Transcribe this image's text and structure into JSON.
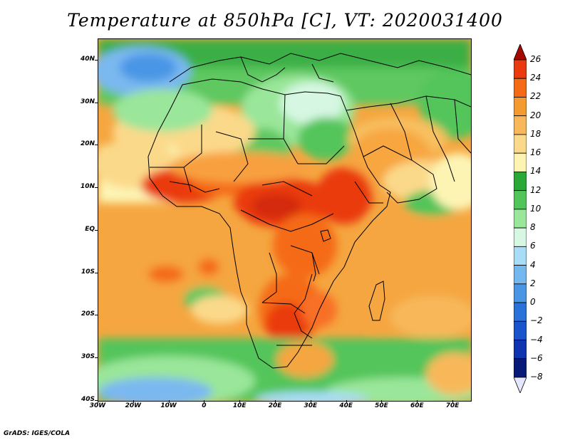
{
  "title": "Temperature at 850hPa [C], VT: 2020031400",
  "footer": "GrADS: IGES/COLA",
  "map": {
    "region": "Africa",
    "lon_range": [
      -30,
      75
    ],
    "lat_range": [
      -40,
      45
    ],
    "y_ticks": [
      {
        "label": "40N",
        "lat": 40
      },
      {
        "label": "30N",
        "lat": 30
      },
      {
        "label": "20N",
        "lat": 20
      },
      {
        "label": "10N",
        "lat": 10
      },
      {
        "label": "EQ",
        "lat": 0
      },
      {
        "label": "10S",
        "lat": -10
      },
      {
        "label": "20S",
        "lat": -20
      },
      {
        "label": "30S",
        "lat": -30
      },
      {
        "label": "40S",
        "lat": -40
      }
    ],
    "x_ticks": [
      {
        "label": "30W",
        "lon": -30
      },
      {
        "label": "20W",
        "lon": -20
      },
      {
        "label": "10W",
        "lon": -10
      },
      {
        "label": "0",
        "lon": 0
      },
      {
        "label": "10E",
        "lon": 10
      },
      {
        "label": "20E",
        "lon": 20
      },
      {
        "label": "30E",
        "lon": 30
      },
      {
        "label": "40E",
        "lon": 40
      },
      {
        "label": "50E",
        "lon": 50
      },
      {
        "label": "60E",
        "lon": 60
      },
      {
        "label": "70E",
        "lon": 70
      }
    ]
  },
  "colorbar": {
    "levels": [
      {
        "label": "26",
        "value": 26,
        "color": "#a50a00"
      },
      {
        "label": "24",
        "value": 24,
        "color": "#ea3a10"
      },
      {
        "label": "22",
        "value": 22,
        "color": "#f56a14"
      },
      {
        "label": "20",
        "value": 20,
        "color": "#f59a30"
      },
      {
        "label": "18",
        "value": 18,
        "color": "#f8b85a"
      },
      {
        "label": "16",
        "value": 16,
        "color": "#fbd98a"
      },
      {
        "label": "14",
        "value": 14,
        "color": "#fdf4b4"
      },
      {
        "label": "12",
        "value": 12,
        "color": "#2aa838"
      },
      {
        "label": "10",
        "value": 10,
        "color": "#52c55a"
      },
      {
        "label": "8",
        "value": 8,
        "color": "#9ae69a"
      },
      {
        "label": "6",
        "value": 6,
        "color": "#d6f7e2"
      },
      {
        "label": "4",
        "value": 4,
        "color": "#a8ddf8"
      },
      {
        "label": "2",
        "value": 2,
        "color": "#74b8f0"
      },
      {
        "label": "0",
        "value": 0,
        "color": "#4a96e6"
      },
      {
        "label": "−2",
        "value": -2,
        "color": "#2a72da"
      },
      {
        "label": "−4",
        "value": -4,
        "color": "#1a54cc"
      },
      {
        "label": "−6",
        "value": -6,
        "color": "#0e34b0"
      },
      {
        "label": "−8",
        "value": -8,
        "color": "#081a78"
      }
    ],
    "under_color": "#e6e6ff"
  }
}
